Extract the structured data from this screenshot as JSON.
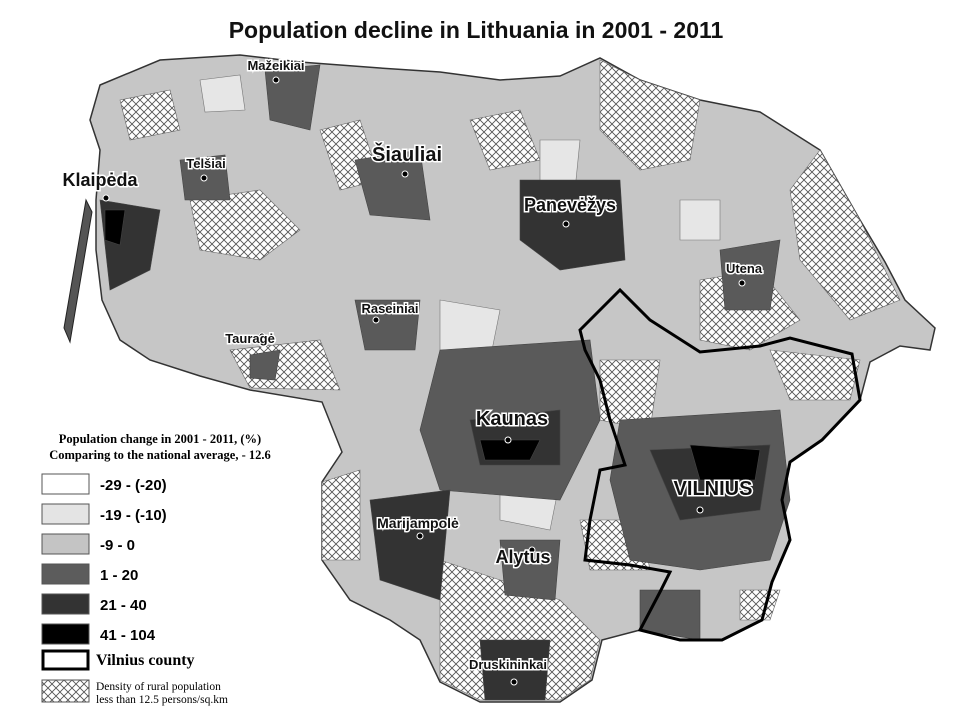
{
  "title": "Population decline in Lithuania in 2001 - 2011",
  "cities": [
    {
      "label": "Mažeikiai"
    },
    {
      "label": "Telšiai"
    },
    {
      "label": "Klaipėda"
    },
    {
      "label": "Šiauliai"
    },
    {
      "label": "Panevėžys"
    },
    {
      "label": "Utena"
    },
    {
      "label": "Raseiniai"
    },
    {
      "label": "Tauragė"
    },
    {
      "label": "Kaunas"
    },
    {
      "label": "VILNIUS"
    },
    {
      "label": "Marijampolė"
    },
    {
      "label": "Alytus"
    },
    {
      "label": "Druskininkai"
    }
  ],
  "legend": {
    "title_lines": [
      "Population change in 2001 - 2011, (%)",
      "Comparing to the national average, - 12.6"
    ],
    "items": [
      {
        "label": "-29 - (-20)",
        "color": "#ffffff"
      },
      {
        "label": "-19 - (-10)",
        "color": "#e4e4e4"
      },
      {
        "label": "-9 - 0",
        "color": "#c4c4c4"
      },
      {
        "label": "1 - 20",
        "color": "#5c5c5c"
      },
      {
        "label": "21 - 40",
        "color": "#333333"
      },
      {
        "label": "41 - 104",
        "color": "#000000"
      }
    ],
    "county": "Vilnius county",
    "density_lines": [
      "Density of rural population",
      "less than 12.5 persons/sq.km"
    ]
  }
}
